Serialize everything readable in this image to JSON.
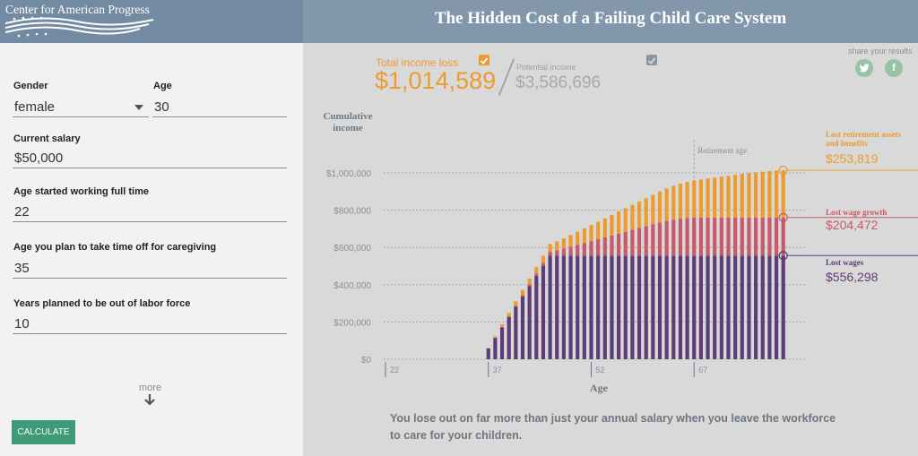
{
  "header": {
    "logo_text": "Center for American Progress",
    "title": "The Hidden Cost of a Failing Child Care System"
  },
  "form": {
    "gender_label": "Gender",
    "gender_value": "female",
    "age_label": "Age",
    "age_value": "30",
    "salary_label": "Current salary",
    "salary_value": "$50,000",
    "start_label": "Age started working full time",
    "start_value": "22",
    "timeoff_label": "Age you plan to take time off for caregiving",
    "timeoff_value": "35",
    "years_label": "Years planned to be out of labor force",
    "years_value": "10",
    "more_label": "more",
    "calculate_label": "CALCULATE"
  },
  "stats": {
    "total_loss_label": "Total income loss",
    "total_loss_value": "$1,014,589",
    "potential_label": "Potential income",
    "potential_value": "$3,586,696"
  },
  "share": {
    "label": "share your results",
    "twitter_icon": "twitter-icon",
    "facebook_icon": "facebook-icon"
  },
  "colors": {
    "orange": "#ed9b2f",
    "red": "#c8596a",
    "purple": "#5d3c77",
    "green_button": "#3f9a78",
    "header": "#8297ac"
  },
  "caption": "You lose out on far more than just your annual salary when you leave the workforce to care for your children.",
  "chart_data": {
    "type": "bar",
    "stacked": true,
    "ylabel": "Cumulative income",
    "xlabel": "Age",
    "ylim": [
      0,
      1000000
    ],
    "ytick_labels": [
      "$1,000,000",
      "$800,000",
      "$600,000",
      "$400,000",
      "$200,000",
      "$0"
    ],
    "ytick_values": [
      1000000,
      800000,
      600000,
      400000,
      200000,
      0
    ],
    "xtick_labels": [
      "22",
      "37",
      "52",
      "67"
    ],
    "xtick_values": [
      22,
      37,
      52,
      67
    ],
    "x_start": 22,
    "x_end": 80,
    "retirement_label": "Retirement age",
    "retirement_age": 67,
    "series": [
      {
        "name": "Lost wages",
        "label_value": "$556,298",
        "color": "#5d3c77",
        "values": [
          0,
          0,
          0,
          0,
          0,
          0,
          0,
          0,
          0,
          0,
          0,
          0,
          0,
          0,
          0,
          58000,
          115000,
          172000,
          228000,
          283000,
          338000,
          393000,
          448000,
          502000,
          556298,
          556298,
          556298,
          556298,
          556298,
          556298,
          556298,
          556298,
          556298,
          556298,
          556298,
          556298,
          556298,
          556298,
          556298,
          556298,
          556298,
          556298,
          556298,
          556298,
          556298,
          556298,
          556298,
          556298,
          556298,
          556298,
          556298,
          556298,
          556298,
          556298,
          556298,
          556298,
          556298,
          556298,
          556298
        ]
      },
      {
        "name": "Lost wage growth",
        "label_value": "$204,472",
        "color": "#c8596a",
        "values": [
          0,
          0,
          0,
          0,
          0,
          0,
          0,
          0,
          0,
          0,
          0,
          0,
          0,
          0,
          0,
          0,
          0,
          0,
          0,
          3000,
          6000,
          9000,
          12000,
          15000,
          20000,
          28000,
          38000,
          48000,
          58000,
          68000,
          78000,
          88000,
          98000,
          108000,
          118000,
          128000,
          138000,
          148000,
          158000,
          168000,
          178000,
          186000,
          193000,
          198000,
          202000,
          204472,
          204472,
          204472,
          204472,
          204472,
          204472,
          204472,
          204472,
          204472,
          204472,
          204472,
          204472,
          204472,
          204472
        ]
      },
      {
        "name": "Lost retirement assets and benefits",
        "label_value": "$253,819",
        "color": "#ed9b2f",
        "values": [
          0,
          0,
          0,
          0,
          0,
          0,
          0,
          0,
          0,
          0,
          0,
          0,
          0,
          0,
          0,
          3000,
          8000,
          15000,
          20000,
          25000,
          28000,
          31000,
          34000,
          38000,
          42000,
          48000,
          54000,
          62000,
          70000,
          78000,
          86000,
          94000,
          102000,
          110000,
          118000,
          126000,
          134000,
          142000,
          150000,
          158000,
          166000,
          174000,
          182000,
          188000,
          194000,
          199000,
          204000,
          209000,
          214000,
          219000,
          224000,
          229000,
          234000,
          238000,
          242000,
          246000,
          249000,
          252000,
          253819
        ]
      }
    ]
  }
}
